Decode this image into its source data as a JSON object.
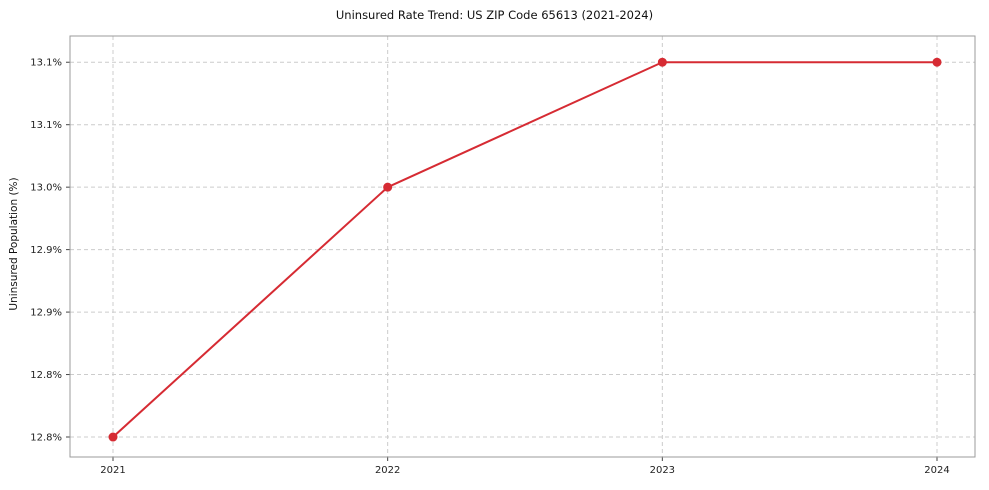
{
  "chart_data": {
    "type": "line",
    "title": "Uninsured Rate Trend: US ZIP Code 65613 (2021-2024)",
    "xlabel": "",
    "ylabel": "Uninsured Population (%)",
    "x": [
      2021,
      2022,
      2023,
      2024
    ],
    "x_tick_labels": [
      "2021",
      "2022",
      "2023",
      "2024"
    ],
    "series": [
      {
        "name": "Uninsured Population (%)",
        "values": [
          12.8,
          13.0,
          13.1,
          13.1
        ],
        "color": "#d62b33"
      }
    ],
    "y_ticks": [
      12.8,
      12.85,
      12.9,
      12.95,
      13.0,
      13.05,
      13.1
    ],
    "y_tick_labels": [
      "12.8%",
      "12.8%",
      "12.9%",
      "12.9%",
      "13.0%",
      "13.1%",
      "13.1%"
    ],
    "ylim": [
      12.784,
      13.121
    ],
    "grid": true,
    "grid_style": "dashed",
    "grid_color": "#cccccc",
    "border_color": "#9b9b9b",
    "tick_color": "#444444",
    "label_color": "#222222",
    "legend": false,
    "marker": "circle",
    "background": "#ffffff"
  }
}
